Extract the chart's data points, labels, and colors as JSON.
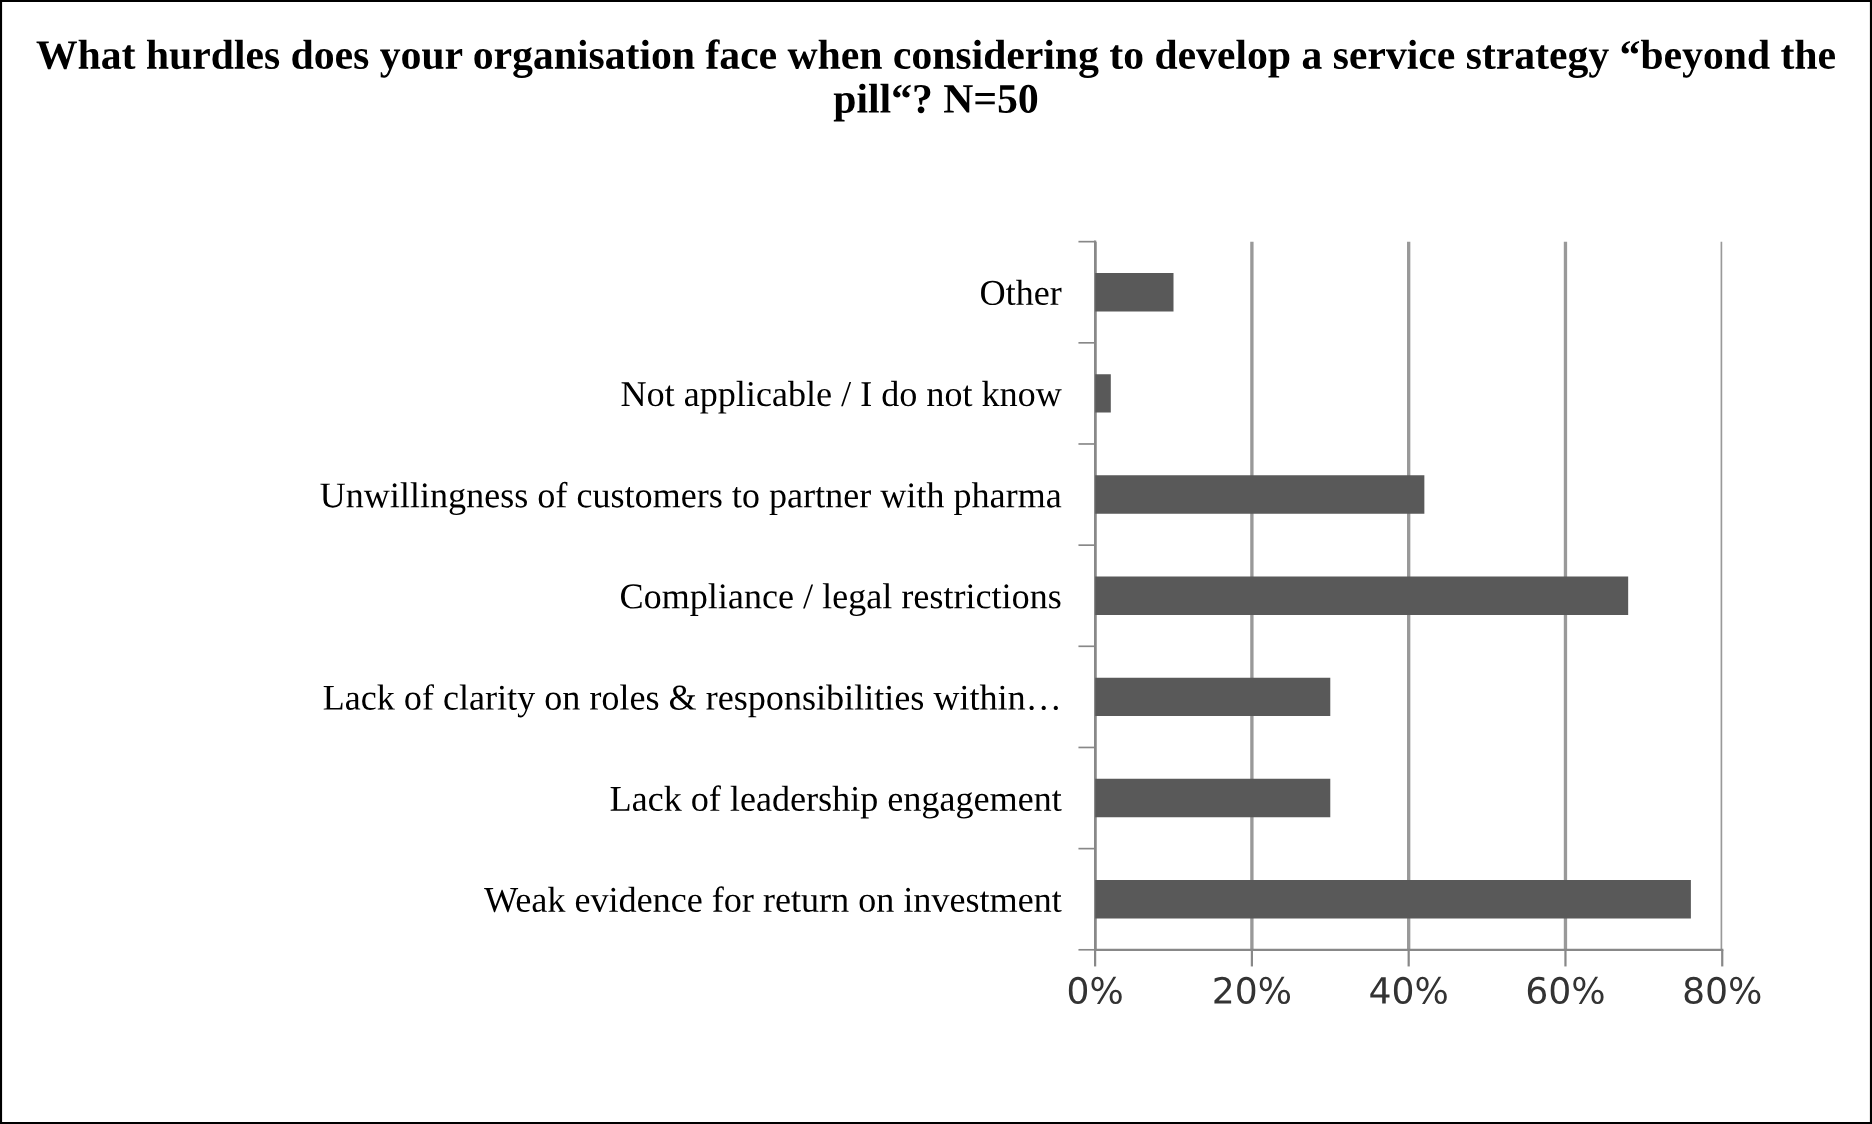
{
  "chart_data": {
    "type": "bar",
    "orientation": "horizontal",
    "title": "What hurdles does your organisation face when considering to develop a service strategy “beyond the pill“? N=50",
    "categories": [
      "Other",
      "Not applicable / I do not know",
      "Unwillingness of customers to partner with pharma",
      "Compliance / legal restrictions",
      "Lack of clarity on roles & responsibilities within…",
      "Lack of leadership engagement",
      "Weak evidence for return on investment"
    ],
    "values": [
      10,
      2,
      42,
      68,
      30,
      30,
      76
    ],
    "color": "#595959",
    "xlim": [
      0,
      80
    ],
    "xticks": [
      {
        "value": 0,
        "label": "0%"
      },
      {
        "value": 20,
        "label": "20%"
      },
      {
        "value": 40,
        "label": "40%"
      },
      {
        "value": 60,
        "label": "60%"
      },
      {
        "value": 80,
        "label": "80%"
      }
    ],
    "grid": "x"
  }
}
